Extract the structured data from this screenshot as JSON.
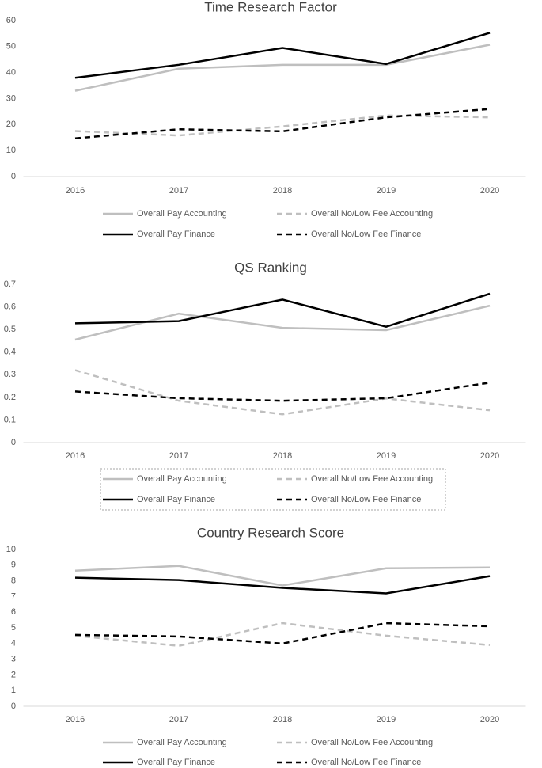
{
  "chart_data": [
    {
      "type": "line",
      "title": "Time Research Factor",
      "categories": [
        "2016",
        "2017",
        "2018",
        "2019",
        "2020"
      ],
      "ylim": [
        0,
        60
      ],
      "yticks": [
        0,
        10,
        20,
        30,
        40,
        50,
        60
      ],
      "grid": false,
      "legend": "bottom",
      "legend_box": false,
      "series": [
        {
          "name": "Overall Pay Accounting",
          "color": "#bfbfbf",
          "style": "solid",
          "values": [
            33,
            41.5,
            43,
            43,
            50.7
          ]
        },
        {
          "name": "Overall No/Low Fee Accounting",
          "color": "#bfbfbf",
          "style": "dashed",
          "values": [
            17.5,
            15.8,
            19.3,
            23.5,
            22.8
          ]
        },
        {
          "name": "Overall Pay Finance",
          "color": "#000000",
          "style": "solid",
          "values": [
            38,
            43,
            49.5,
            43.3,
            55.3
          ]
        },
        {
          "name": "Overall No/Low Fee Finance",
          "color": "#000000",
          "style": "dashed",
          "values": [
            14.7,
            18.2,
            17.4,
            22.8,
            26
          ]
        }
      ]
    },
    {
      "type": "line",
      "title": "QS Ranking",
      "categories": [
        "2016",
        "2017",
        "2018",
        "2019",
        "2020"
      ],
      "ylim": [
        0,
        0.7
      ],
      "yticks": [
        0,
        0.1,
        0.2,
        0.3,
        0.4,
        0.5,
        0.6,
        0.7
      ],
      "grid": false,
      "legend": "bottom",
      "legend_box": true,
      "series": [
        {
          "name": "Overall Pay Accounting",
          "color": "#bfbfbf",
          "style": "solid",
          "values": [
            0.455,
            0.57,
            0.507,
            0.497,
            0.605
          ]
        },
        {
          "name": "Overall No/Low Fee Accounting",
          "color": "#bfbfbf",
          "style": "dashed",
          "values": [
            0.32,
            0.185,
            0.125,
            0.195,
            0.143
          ]
        },
        {
          "name": "Overall Pay Finance",
          "color": "#000000",
          "style": "solid",
          "values": [
            0.527,
            0.537,
            0.632,
            0.512,
            0.658
          ]
        },
        {
          "name": "Overall No/Low Fee Finance",
          "color": "#000000",
          "style": "dashed",
          "values": [
            0.226,
            0.196,
            0.185,
            0.196,
            0.265
          ]
        }
      ]
    },
    {
      "type": "line",
      "title": "Country  Research Score",
      "categories": [
        "2016",
        "2017",
        "2018",
        "2019",
        "2020"
      ],
      "ylim": [
        0,
        10
      ],
      "yticks": [
        0,
        1,
        2,
        3,
        4,
        5,
        6,
        7,
        8,
        9,
        10
      ],
      "grid": false,
      "legend": "bottom",
      "legend_box": false,
      "series": [
        {
          "name": "Overall Pay Accounting",
          "color": "#bfbfbf",
          "style": "solid",
          "values": [
            8.65,
            8.95,
            7.7,
            8.8,
            8.85
          ]
        },
        {
          "name": "Overall No/Low Fee Accounting",
          "color": "#bfbfbf",
          "style": "dashed",
          "values": [
            4.5,
            3.85,
            5.3,
            4.5,
            3.9
          ]
        },
        {
          "name": "Overall Pay Finance",
          "color": "#000000",
          "style": "solid",
          "values": [
            8.2,
            8.05,
            7.55,
            7.2,
            8.3
          ]
        },
        {
          "name": "Overall No/Low Fee Finance",
          "color": "#000000",
          "style": "dashed",
          "values": [
            4.55,
            4.45,
            4.0,
            5.3,
            5.1
          ]
        }
      ]
    }
  ]
}
